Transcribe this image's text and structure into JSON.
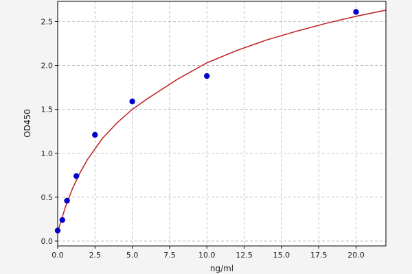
{
  "chart_data": {
    "type": "scatter",
    "title": "",
    "xlabel": "ng/ml",
    "ylabel": "OD450",
    "xlim": [
      0,
      22
    ],
    "ylim": [
      -0.055,
      2.73
    ],
    "xticks": [
      0.0,
      2.5,
      5.0,
      7.5,
      10.0,
      12.5,
      15.0,
      17.5,
      20.0
    ],
    "xtick_labels": [
      "0.0",
      "2.5",
      "5.0",
      "7.5",
      "10.0",
      "12.5",
      "15.0",
      "17.5",
      "20.0"
    ],
    "yticks": [
      0.0,
      0.5,
      1.0,
      1.5,
      2.0,
      2.5
    ],
    "ytick_labels": [
      "0.0",
      "0.5",
      "1.0",
      "1.5",
      "2.0",
      "2.5"
    ],
    "grid": true,
    "points": {
      "x": [
        0,
        0.3125,
        0.625,
        1.25,
        2.5,
        5,
        10,
        20
      ],
      "y": [
        0.12,
        0.24,
        0.46,
        0.74,
        1.21,
        1.59,
        1.88,
        2.61
      ],
      "color": "#0000cc"
    },
    "fit_curve": {
      "x": [
        0,
        0.5,
        1,
        1.5,
        2,
        3,
        4,
        5,
        6,
        8,
        10,
        12,
        14,
        16,
        18,
        20,
        22
      ],
      "y": [
        0.1,
        0.38,
        0.6,
        0.78,
        0.93,
        1.17,
        1.35,
        1.5,
        1.62,
        1.84,
        2.03,
        2.17,
        2.29,
        2.39,
        2.48,
        2.56,
        2.63
      ],
      "color": "#c0282a"
    }
  }
}
